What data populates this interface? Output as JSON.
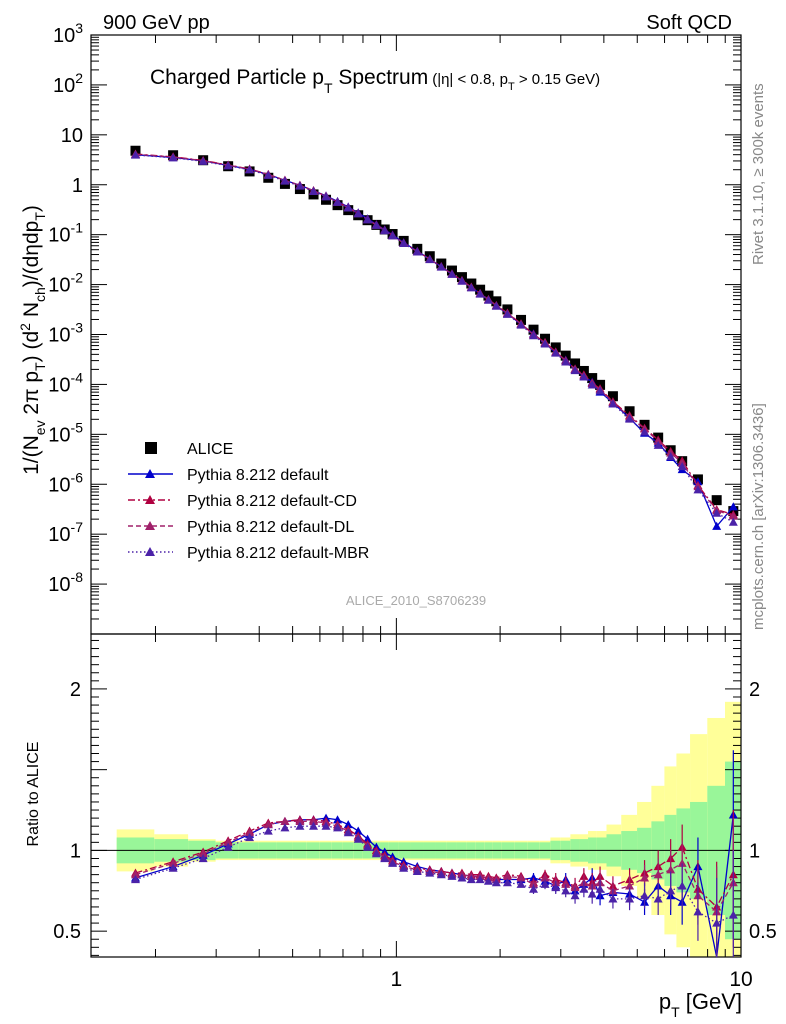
{
  "header": {
    "left": "900 GeV pp",
    "right": "Soft QCD",
    "side_rivet": "Rivet 3.1.10, ≥ 300k events",
    "side_mcplots": "mcplots.cern.ch [arXiv:1306.3436]"
  },
  "chart_data": {
    "type": "scatter",
    "title_main": "Charged Particle p",
    "title_main_sub": "T",
    "title_main_end": " Spectrum",
    "title_cuts": {
      "a": "(|η| < 0.8, p",
      "a_sub": "T",
      "b": " > 0.15 GeV)"
    },
    "analysis_id": "ALICE_2010_S8706239",
    "xlabel": {
      "base": "p",
      "sub": "T",
      "rest": " [GeV]"
    },
    "ylabel_top": "1/(N_ev 2π p_T) (d² N_ch)/(dηdp_T)",
    "ylabel_bottom": "Ratio to ALICE",
    "xscale": "log",
    "xlim": [
      0.13,
      10
    ],
    "top": {
      "yscale": "log",
      "ylim": [
        1e-09,
        1000
      ],
      "yticks": [
        {
          "v": 1e-08,
          "t": "10^-8"
        },
        {
          "v": 1e-07,
          "t": "10^-7"
        },
        {
          "v": 1e-06,
          "t": "10^-6"
        },
        {
          "v": 1e-05,
          "t": "10^-5"
        },
        {
          "v": 0.0001,
          "t": "10^-4"
        },
        {
          "v": 0.001,
          "t": "10^-3"
        },
        {
          "v": 0.01,
          "t": "10^-2"
        },
        {
          "v": 0.1,
          "t": "10^-1"
        },
        {
          "v": 1,
          "t": "1"
        },
        {
          "v": 10,
          "t": "10"
        },
        {
          "v": 100,
          "t": "10^2"
        },
        {
          "v": 1000,
          "t": "10^3"
        }
      ]
    },
    "bottom": {
      "yscale": "linear",
      "ylim": [
        0.34,
        2.34
      ],
      "yticks": [
        {
          "v": 0.5,
          "t": "0.5"
        },
        {
          "v": 1,
          "t": "1"
        },
        {
          "v": 2,
          "t": "2"
        }
      ]
    },
    "xticks": [
      {
        "v": 1,
        "t": "1"
      },
      {
        "v": 10,
        "t": "10"
      }
    ],
    "x": [
      0.175,
      0.225,
      0.275,
      0.325,
      0.375,
      0.425,
      0.475,
      0.525,
      0.575,
      0.625,
      0.675,
      0.725,
      0.775,
      0.825,
      0.875,
      0.925,
      0.975,
      1.05,
      1.15,
      1.25,
      1.35,
      1.45,
      1.55,
      1.65,
      1.75,
      1.85,
      1.95,
      2.1,
      2.3,
      2.5,
      2.7,
      2.9,
      3.1,
      3.3,
      3.5,
      3.7,
      3.9,
      4.25,
      4.75,
      5.25,
      5.75,
      6.25,
      6.75,
      7.5,
      8.5,
      9.5
    ],
    "legend": {
      "position": "bottom-left",
      "entries": [
        "ALICE",
        "Pythia 8.212 default",
        "Pythia 8.212 default-CD",
        "Pythia 8.212 default-DL",
        "Pythia 8.212 default-MBR"
      ]
    },
    "series": [
      {
        "name": "ALICE",
        "color": "#000000",
        "marker": "square",
        "values": [
          4.8,
          3.9,
          3.1,
          2.35,
          1.85,
          1.38,
          1.04,
          0.82,
          0.64,
          0.5,
          0.39,
          0.31,
          0.245,
          0.195,
          0.157,
          0.127,
          0.103,
          0.075,
          0.052,
          0.037,
          0.0264,
          0.0191,
          0.0141,
          0.0105,
          0.0079,
          0.00601,
          0.00462,
          0.00318,
          0.00196,
          0.00125,
          0.000822,
          0.000551,
          0.000377,
          0.000263,
          0.000186,
          0.000134,
          9.8e-05,
          5.8e-05,
          2.9e-05,
          1.55e-05,
          8.6e-06,
          4.8e-06,
          2.9e-06,
          1.25e-06,
          4.8e-07,
          2.9e-07
        ],
        "ratio_band_inner": [
          0.08,
          0.07,
          0.06,
          0.05,
          0.05,
          0.05,
          0.05,
          0.05,
          0.05,
          0.05,
          0.05,
          0.05,
          0.05,
          0.05,
          0.05,
          0.05,
          0.05,
          0.05,
          0.05,
          0.05,
          0.05,
          0.05,
          0.05,
          0.05,
          0.05,
          0.05,
          0.05,
          0.05,
          0.05,
          0.05,
          0.05,
          0.06,
          0.06,
          0.07,
          0.07,
          0.08,
          0.08,
          0.1,
          0.12,
          0.14,
          0.18,
          0.22,
          0.26,
          0.3,
          0.4,
          0.55
        ],
        "ratio_band_outer": [
          0.13,
          0.1,
          0.07,
          0.06,
          0.06,
          0.06,
          0.06,
          0.06,
          0.06,
          0.06,
          0.06,
          0.06,
          0.06,
          0.06,
          0.06,
          0.06,
          0.06,
          0.06,
          0.06,
          0.06,
          0.06,
          0.06,
          0.06,
          0.06,
          0.06,
          0.06,
          0.06,
          0.06,
          0.06,
          0.06,
          0.06,
          0.08,
          0.08,
          0.1,
          0.1,
          0.12,
          0.12,
          0.16,
          0.22,
          0.3,
          0.4,
          0.52,
          0.6,
          0.72,
          0.82,
          0.92
        ]
      },
      {
        "name": "Pythia 8.212 default",
        "color": "#0000cc",
        "dash": "",
        "marker": "triangle",
        "ratio": [
          0.83,
          0.9,
          0.97,
          1.04,
          1.1,
          1.16,
          1.18,
          1.19,
          1.19,
          1.2,
          1.19,
          1.16,
          1.12,
          1.07,
          1.02,
          0.99,
          0.96,
          0.93,
          0.9,
          0.88,
          0.87,
          0.86,
          0.85,
          0.84,
          0.84,
          0.83,
          0.82,
          0.82,
          0.82,
          0.83,
          0.81,
          0.78,
          0.82,
          0.75,
          0.79,
          0.83,
          0.72,
          0.74,
          0.73,
          0.68,
          0.78,
          0.72,
          0.68,
          0.9,
          0.3,
          1.22
        ],
        "ratio_err": [
          0.01,
          0.01,
          0.01,
          0.01,
          0.01,
          0.01,
          0.01,
          0.01,
          0.01,
          0.01,
          0.01,
          0.01,
          0.01,
          0.01,
          0.01,
          0.01,
          0.01,
          0.01,
          0.01,
          0.01,
          0.01,
          0.01,
          0.01,
          0.01,
          0.01,
          0.01,
          0.02,
          0.02,
          0.02,
          0.03,
          0.03,
          0.04,
          0.04,
          0.05,
          0.05,
          0.06,
          0.06,
          0.06,
          0.07,
          0.08,
          0.1,
          0.12,
          0.14,
          0.18,
          0.28,
          0.4
        ]
      },
      {
        "name": "Pythia 8.212 default-CD",
        "color": "#b00040",
        "dash": "7,3,2,3",
        "marker": "triangle",
        "ratio": [
          0.86,
          0.93,
          0.99,
          1.06,
          1.12,
          1.17,
          1.18,
          1.19,
          1.19,
          1.18,
          1.16,
          1.13,
          1.09,
          1.04,
          1.0,
          0.97,
          0.94,
          0.91,
          0.89,
          0.88,
          0.87,
          0.86,
          0.86,
          0.85,
          0.85,
          0.84,
          0.83,
          0.85,
          0.84,
          0.8,
          0.85,
          0.82,
          0.8,
          0.78,
          0.84,
          0.8,
          0.84,
          0.78,
          0.82,
          0.86,
          0.9,
          0.95,
          1.02,
          0.76,
          0.65,
          0.85
        ],
        "ratio_err": [
          0.01,
          0.01,
          0.01,
          0.01,
          0.01,
          0.01,
          0.01,
          0.01,
          0.01,
          0.01,
          0.01,
          0.01,
          0.01,
          0.01,
          0.01,
          0.01,
          0.01,
          0.01,
          0.01,
          0.01,
          0.01,
          0.01,
          0.01,
          0.01,
          0.01,
          0.01,
          0.02,
          0.02,
          0.02,
          0.03,
          0.03,
          0.04,
          0.04,
          0.05,
          0.05,
          0.06,
          0.06,
          0.06,
          0.07,
          0.08,
          0.1,
          0.12,
          0.14,
          0.18,
          0.28,
          0.4
        ]
      },
      {
        "name": "Pythia 8.212 default-DL",
        "color": "#a0206a",
        "dash": "5,3",
        "marker": "triangle",
        "ratio": [
          0.85,
          0.92,
          0.98,
          1.05,
          1.11,
          1.16,
          1.18,
          1.18,
          1.18,
          1.17,
          1.15,
          1.12,
          1.08,
          1.03,
          0.99,
          0.96,
          0.93,
          0.9,
          0.88,
          0.87,
          0.86,
          0.85,
          0.85,
          0.84,
          0.84,
          0.83,
          0.82,
          0.84,
          0.83,
          0.79,
          0.83,
          0.8,
          0.79,
          0.77,
          0.8,
          0.78,
          0.8,
          0.75,
          0.78,
          0.83,
          0.85,
          0.88,
          0.92,
          0.72,
          0.62,
          0.8
        ],
        "ratio_err": [
          0.01,
          0.01,
          0.01,
          0.01,
          0.01,
          0.01,
          0.01,
          0.01,
          0.01,
          0.01,
          0.01,
          0.01,
          0.01,
          0.01,
          0.01,
          0.01,
          0.01,
          0.01,
          0.01,
          0.01,
          0.01,
          0.01,
          0.01,
          0.01,
          0.01,
          0.01,
          0.02,
          0.02,
          0.02,
          0.03,
          0.03,
          0.04,
          0.04,
          0.05,
          0.05,
          0.06,
          0.06,
          0.06,
          0.07,
          0.08,
          0.1,
          0.12,
          0.14,
          0.18,
          0.28,
          0.4
        ]
      },
      {
        "name": "Pythia 8.212 default-MBR",
        "color": "#4b22a8",
        "dash": "1.5,2.5",
        "marker": "triangle",
        "ratio": [
          0.82,
          0.89,
          0.95,
          1.02,
          1.08,
          1.12,
          1.14,
          1.15,
          1.15,
          1.15,
          1.14,
          1.11,
          1.07,
          1.02,
          0.98,
          0.95,
          0.92,
          0.89,
          0.87,
          0.86,
          0.85,
          0.84,
          0.83,
          0.82,
          0.82,
          0.81,
          0.8,
          0.8,
          0.79,
          0.76,
          0.79,
          0.77,
          0.75,
          0.72,
          0.76,
          0.73,
          0.76,
          0.7,
          0.7,
          0.72,
          0.7,
          0.75,
          0.78,
          0.62,
          0.55,
          0.6
        ],
        "ratio_err": [
          0.01,
          0.01,
          0.01,
          0.01,
          0.01,
          0.01,
          0.01,
          0.01,
          0.01,
          0.01,
          0.01,
          0.01,
          0.01,
          0.01,
          0.01,
          0.01,
          0.01,
          0.01,
          0.01,
          0.01,
          0.01,
          0.01,
          0.01,
          0.01,
          0.01,
          0.01,
          0.02,
          0.02,
          0.02,
          0.03,
          0.03,
          0.04,
          0.04,
          0.05,
          0.05,
          0.06,
          0.06,
          0.06,
          0.07,
          0.08,
          0.1,
          0.12,
          0.14,
          0.18,
          0.28,
          0.4
        ]
      }
    ]
  }
}
